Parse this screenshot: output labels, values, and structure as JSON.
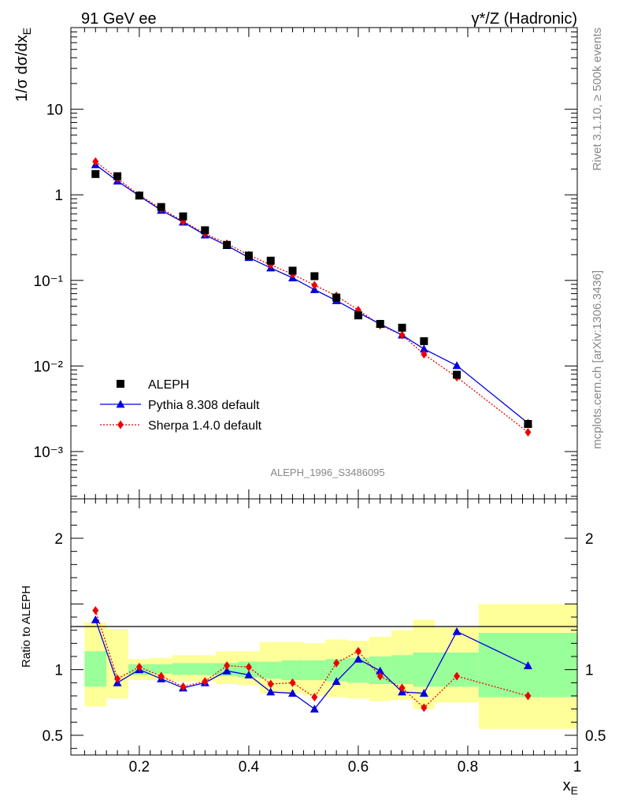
{
  "header": {
    "left_title": "91 GeV ee",
    "right_title": "γ*/Z (Hadronic)"
  },
  "side_labels": {
    "rivet": "Rivet 3.1.10, ≥ 500k events",
    "mcplots": "mcplots.cern.ch [arXiv:1306.3436]"
  },
  "analysis_label": "ALEPH_1996_S3486095",
  "chart_data": [
    {
      "type": "scatter",
      "panel": "main",
      "ylabel": "1/σ dσ/dx_E",
      "yscale": "log",
      "xlim": [
        0.075,
        1.0
      ],
      "ylim": [
        0.00028,
        90
      ],
      "y_tick_labels": [
        "10⁻³",
        "10⁻²",
        "10⁻¹",
        "1",
        "10"
      ],
      "x": [
        0.12,
        0.16,
        0.2,
        0.24,
        0.28,
        0.32,
        0.36,
        0.4,
        0.44,
        0.48,
        0.52,
        0.56,
        0.6,
        0.64,
        0.68,
        0.72,
        0.78,
        0.91
      ],
      "series": [
        {
          "name": "ALEPH",
          "color": "#000000",
          "values": [
            1.75,
            1.65,
            0.98,
            0.72,
            0.56,
            0.385,
            0.26,
            0.195,
            0.17,
            0.13,
            0.112,
            0.063,
            0.039,
            0.031,
            0.028,
            0.0195,
            0.0079,
            0.0021
          ]
        },
        {
          "name": "Pythia 8.308 default",
          "color": "#0000dd",
          "values": [
            2.25,
            1.45,
            0.97,
            0.66,
            0.48,
            0.34,
            0.255,
            0.185,
            0.14,
            0.107,
            0.078,
            0.058,
            0.042,
            0.031,
            0.023,
            0.0158,
            0.0101,
            0.00215
          ]
        },
        {
          "name": "Sherpa 1.4.0 default",
          "color": "#ee0000",
          "values": [
            2.45,
            1.55,
            0.99,
            0.69,
            0.49,
            0.352,
            0.268,
            0.198,
            0.152,
            0.118,
            0.088,
            0.066,
            0.045,
            0.03,
            0.023,
            0.0137,
            0.0074,
            0.00168
          ]
        }
      ],
      "legend": [
        "ALEPH",
        "Pythia 8.308 default",
        "Sherpa 1.4.0 default"
      ]
    },
    {
      "type": "line",
      "panel": "ratio",
      "ylabel": "Ratio to ALEPH",
      "xlabel": "x_E",
      "xlim": [
        0.075,
        1.0
      ],
      "ylim": [
        0.35,
        2.3
      ],
      "x_tick_labels": [
        "0.2",
        "0.4",
        "0.6",
        "0.8",
        "1"
      ],
      "y_tick_labels": [
        "0.5",
        "1",
        "2"
      ],
      "bands": {
        "bin_edges": [
          0.1,
          0.14,
          0.18,
          0.22,
          0.26,
          0.3,
          0.34,
          0.38,
          0.42,
          0.46,
          0.5,
          0.54,
          0.58,
          0.62,
          0.66,
          0.7,
          0.74,
          0.82,
          1.0
        ],
        "inner_lo": [
          0.87,
          1.0,
          0.96,
          0.97,
          0.96,
          0.96,
          0.95,
          0.94,
          0.93,
          0.92,
          0.92,
          0.91,
          0.9,
          0.89,
          0.89,
          0.87,
          0.87,
          0.79
        ],
        "inner_hi": [
          1.14,
          1.0,
          1.04,
          1.04,
          1.05,
          1.05,
          1.05,
          1.06,
          1.06,
          1.07,
          1.07,
          1.08,
          1.09,
          1.1,
          1.11,
          1.13,
          1.13,
          1.28
        ],
        "outer_lo": [
          0.72,
          0.78,
          0.92,
          0.92,
          0.91,
          0.91,
          0.89,
          0.88,
          0.82,
          0.82,
          0.8,
          0.79,
          0.78,
          0.76,
          0.77,
          0.7,
          0.75,
          0.55
        ],
        "outer_hi": [
          1.36,
          1.31,
          1.08,
          1.09,
          1.11,
          1.11,
          1.14,
          1.14,
          1.21,
          1.21,
          1.2,
          1.23,
          1.22,
          1.25,
          1.3,
          1.38,
          1.32,
          1.5
        ],
        "inner_color": "#99ff99",
        "outer_color": "#ffff99"
      },
      "series": [
        {
          "name": "Pythia 8.308 default",
          "color": "#0000dd",
          "values": [
            1.38,
            0.9,
            1.0,
            0.93,
            0.86,
            0.9,
            0.99,
            0.96,
            0.83,
            0.82,
            0.7,
            0.91,
            1.08,
            0.99,
            0.83,
            0.82,
            1.29,
            1.03
          ]
        },
        {
          "name": "Sherpa 1.4.0 default",
          "color": "#ee0000",
          "values": [
            1.45,
            0.93,
            1.02,
            0.95,
            0.87,
            0.91,
            1.03,
            1.02,
            0.89,
            0.9,
            0.79,
            1.05,
            1.14,
            0.95,
            0.86,
            0.71,
            0.95,
            0.8
          ]
        }
      ]
    }
  ]
}
